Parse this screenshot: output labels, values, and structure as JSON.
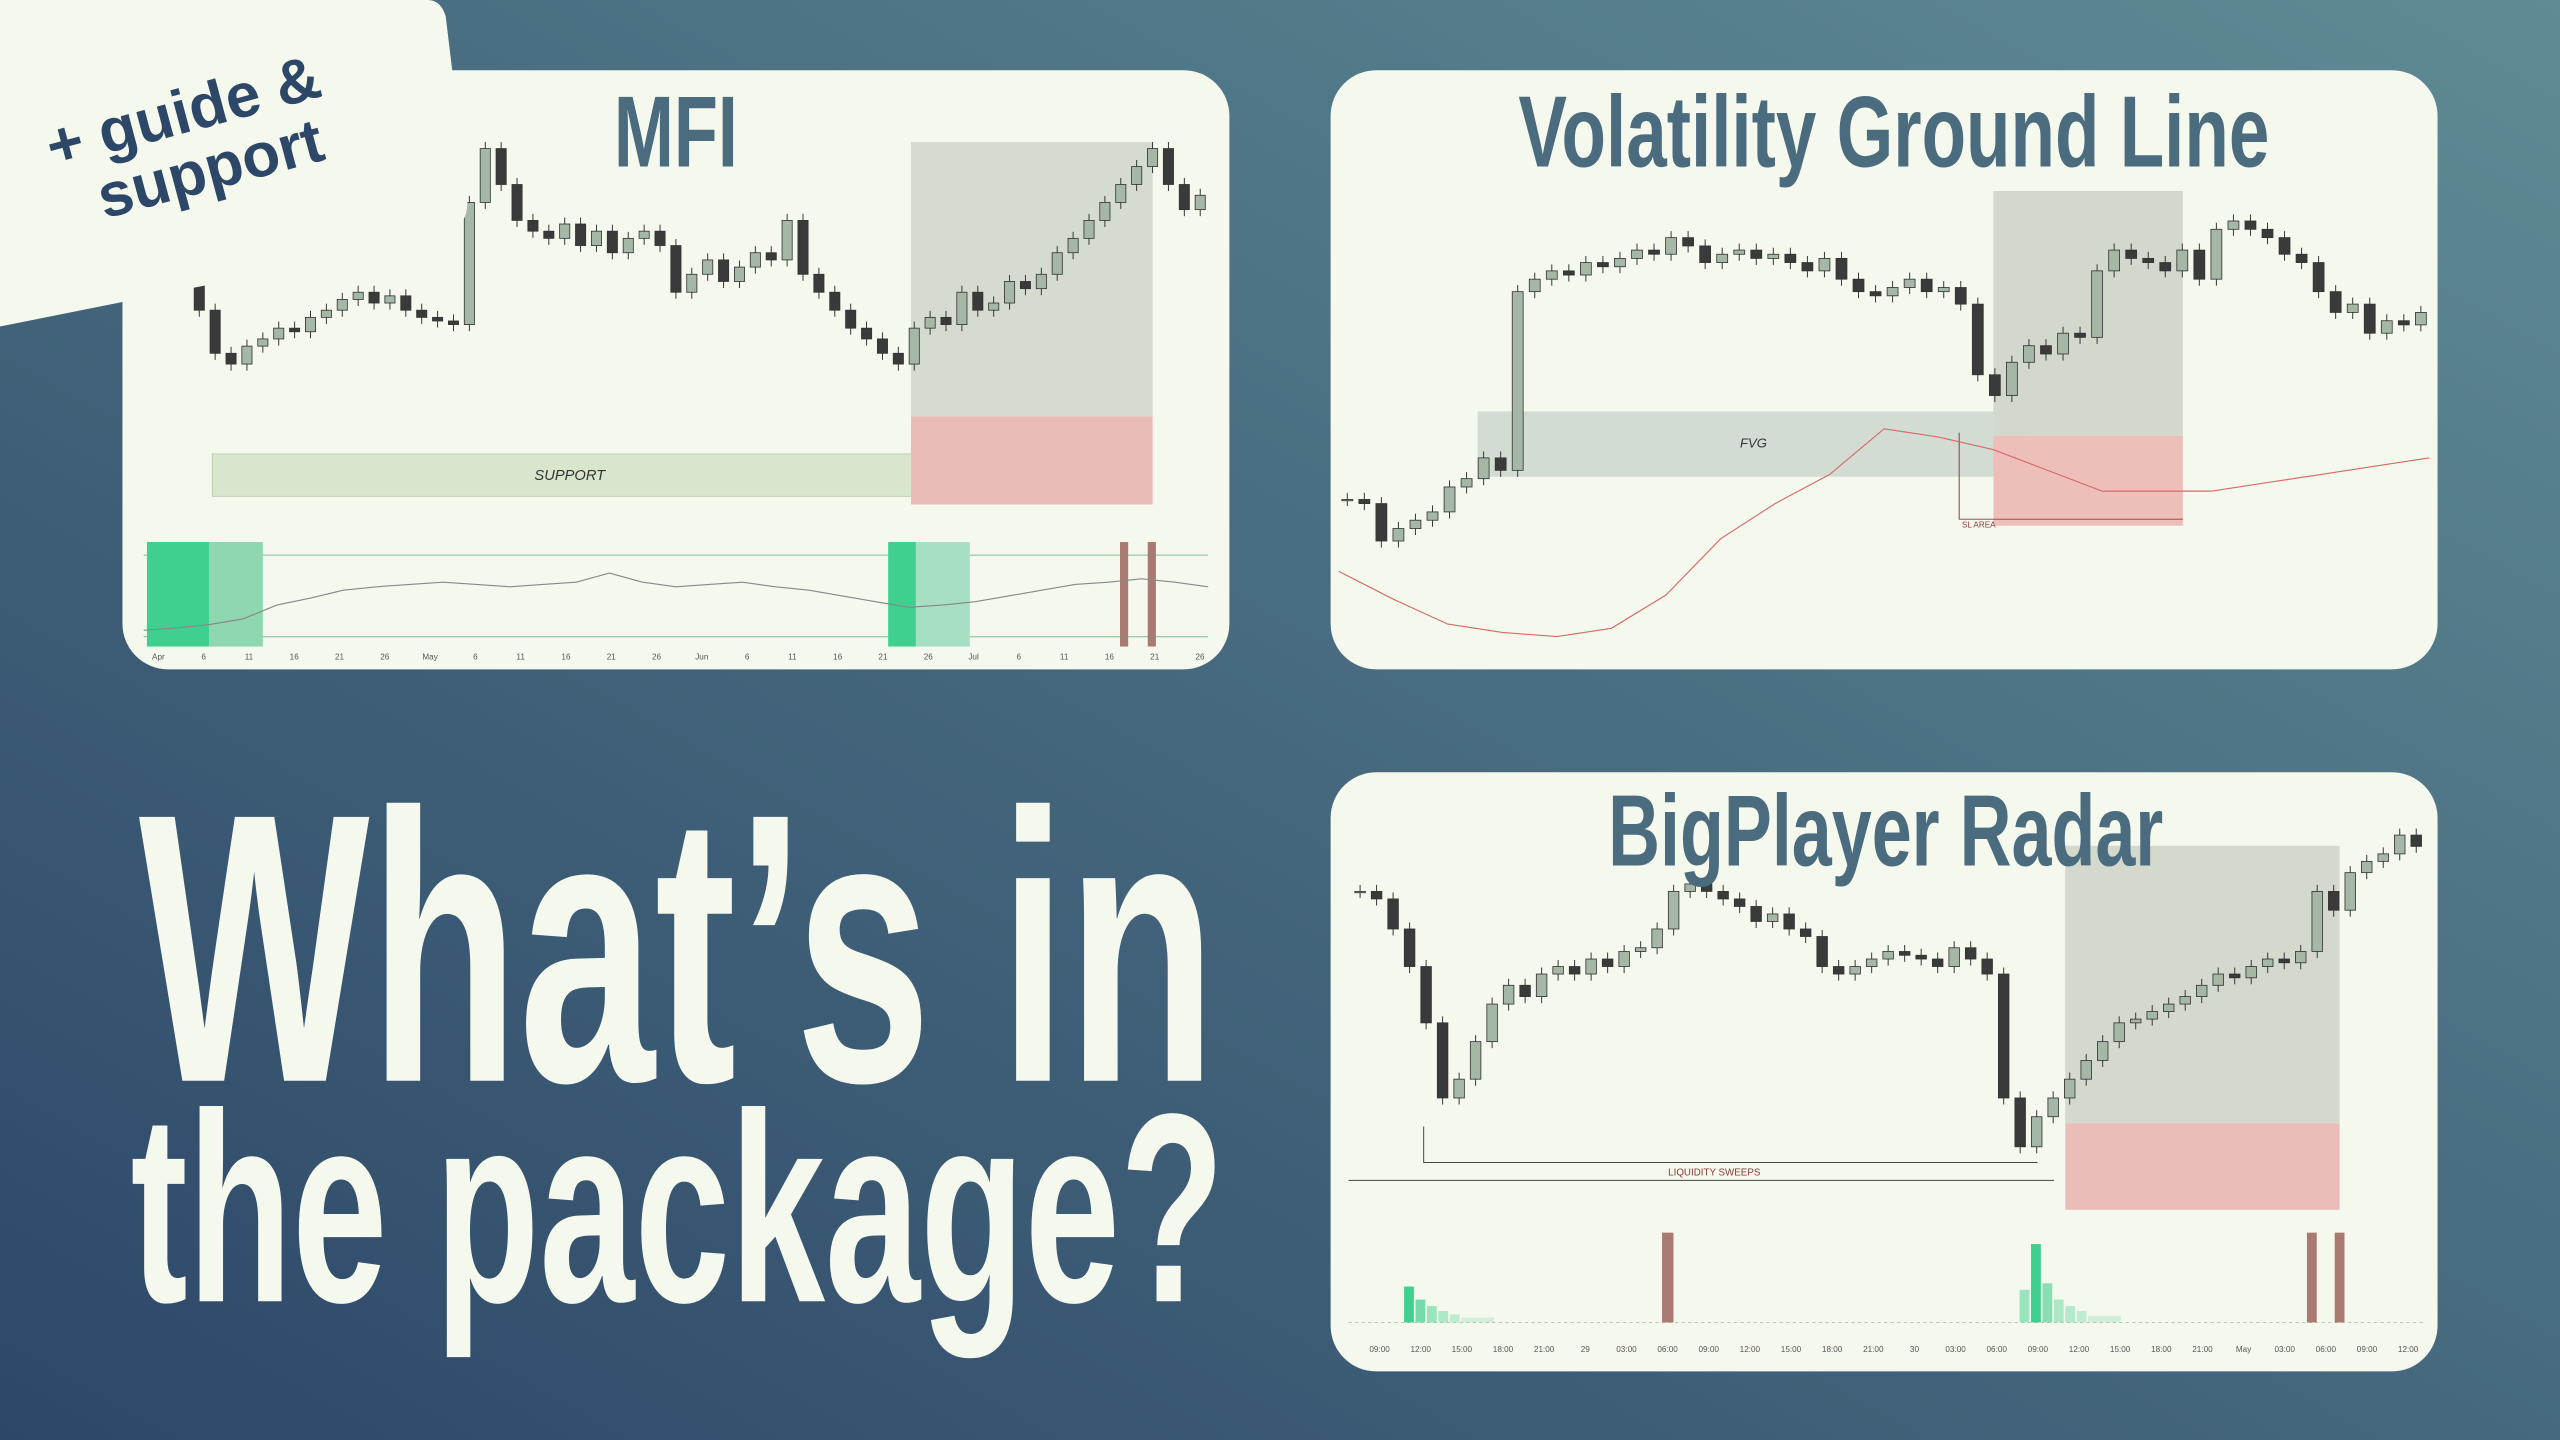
{
  "badge": [
    "+ guide &",
    "support"
  ],
  "headline": [
    "What’s in",
    "the package?"
  ],
  "panels": [
    {
      "title": "MFI",
      "annotations": [
        "SUPPORT"
      ],
      "x_labels": [
        "Apr",
        "6",
        "11",
        "16",
        "21",
        "26",
        "May",
        "6",
        "11",
        "16",
        "21",
        "26",
        "Jun",
        "6",
        "11",
        "16",
        "21",
        "26",
        "Jul",
        "6",
        "11",
        "16",
        "21",
        "26"
      ],
      "candles": {
        "ylim": [
          0,
          100
        ],
        "values": [
          62,
          60,
          58,
          50,
          38,
          35,
          40,
          42,
          45,
          44,
          48,
          50,
          53,
          55,
          52,
          54,
          50,
          48,
          47,
          46,
          80,
          95,
          85,
          75,
          72,
          70,
          74,
          68,
          72,
          66,
          70,
          72,
          68,
          55,
          60,
          64,
          58,
          62,
          66,
          64,
          75,
          60,
          55,
          50,
          45,
          42,
          38,
          35,
          45,
          48,
          46,
          55,
          50,
          52,
          58,
          56,
          60,
          66,
          70,
          75,
          80,
          85,
          90,
          95,
          85,
          78,
          82
        ]
      },
      "oscillator": {
        "ylim": [
          0,
          100
        ],
        "values": [
          20,
          22,
          25,
          30,
          42,
          48,
          55,
          58,
          60,
          62,
          60,
          58,
          60,
          62,
          70,
          62,
          58,
          60,
          62,
          58,
          55,
          50,
          45,
          40,
          42,
          45,
          50,
          55,
          60,
          62,
          65,
          62,
          58
        ]
      }
    },
    {
      "title": "Volatility Ground Line",
      "annotations": [
        "FVG",
        "SL AREA"
      ],
      "candles": {
        "ylim": [
          -10,
          100
        ],
        "values": [
          25,
          24,
          15,
          18,
          20,
          22,
          28,
          30,
          35,
          32,
          75,
          78,
          80,
          79,
          82,
          81,
          83,
          85,
          84,
          88,
          86,
          82,
          84,
          85,
          83,
          84,
          82,
          80,
          83,
          78,
          75,
          74,
          76,
          78,
          75,
          76,
          72,
          55,
          50,
          58,
          62,
          60,
          65,
          64,
          80,
          85,
          83,
          82,
          80,
          85,
          78,
          90,
          92,
          90,
          88,
          84,
          82,
          75,
          70,
          72,
          65,
          68,
          67,
          70
        ]
      },
      "ground_line": {
        "values": [
          7.7,
          1,
          -5,
          -7,
          -8,
          -6,
          2,
          15.5,
          24,
          31,
          42,
          40,
          37,
          32,
          27,
          27,
          27,
          29,
          31,
          33,
          35
        ]
      }
    },
    {
      "title": "BigPlayer Radar",
      "annotations": [
        "LIQUIDITY SWEEPS"
      ],
      "x_labels": [
        "09:00",
        "12:00",
        "15:00",
        "18:00",
        "21:00",
        "29",
        "03:00",
        "06:00",
        "09:00",
        "12:00",
        "15:00",
        "18:00",
        "21:00",
        "30",
        "03:00",
        "06:00",
        "09:00",
        "12:00",
        "15:00",
        "18:00",
        "21:00",
        "May",
        "03:00",
        "06:00",
        "09:00",
        "12:00"
      ],
      "candles": {
        "ylim": [
          0,
          100
        ],
        "values": [
          80,
          78,
          70,
          60,
          45,
          25,
          30,
          40,
          50,
          55,
          52,
          58,
          60,
          58,
          62,
          60,
          64,
          65,
          70,
          80,
          82,
          80,
          78,
          76,
          72,
          74,
          70,
          68,
          60,
          58,
          60,
          62,
          64,
          63,
          62,
          60,
          65,
          62,
          58,
          25,
          12,
          20,
          25,
          30,
          35,
          40,
          45,
          46,
          48,
          50,
          52,
          55,
          58,
          57,
          60,
          62,
          61,
          64,
          80,
          75,
          85,
          88,
          90,
          95,
          92
        ]
      }
    }
  ]
}
